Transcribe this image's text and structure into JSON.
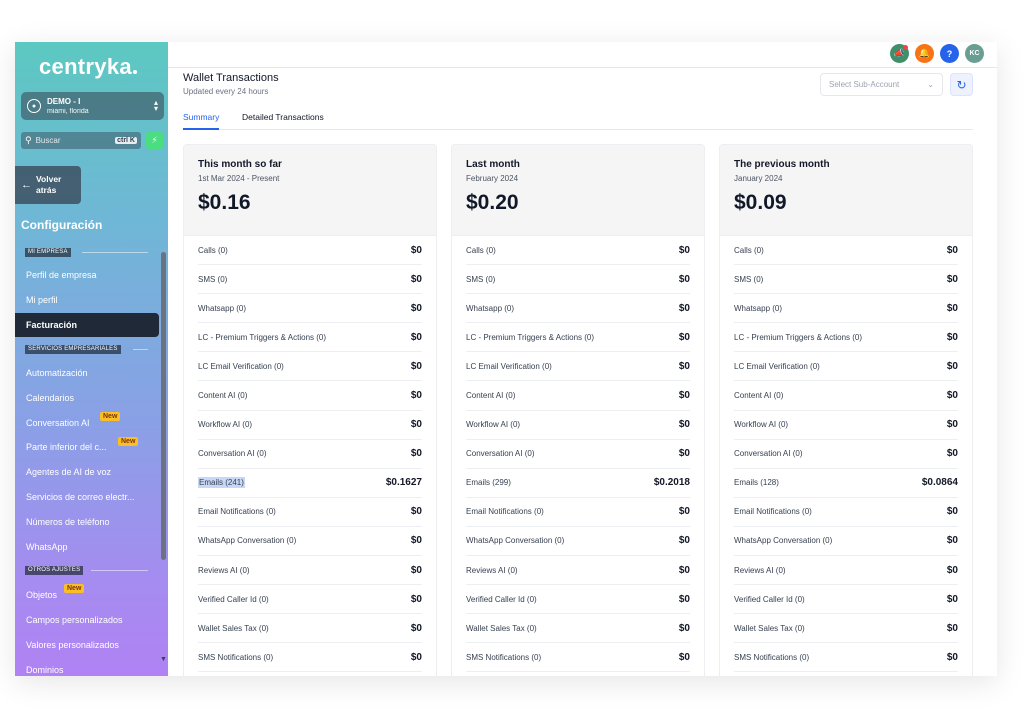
{
  "sidebar": {
    "logo": "centryka",
    "account": {
      "name": "DEMO - I",
      "location": "miami, florida"
    },
    "search": {
      "placeholder": "Buscar",
      "shortcut": "ctrl K"
    },
    "back": "Volver atrás",
    "config_title": "Configuración",
    "sections": [
      {
        "label": "MI EMPRESA",
        "items": [
          "Perfil de empresa",
          "Mi perfil",
          "Facturación"
        ]
      },
      {
        "label": "SERVICIOS EMPRESARIALES",
        "items": [
          "Automatización",
          "Calendarios",
          "Conversation AI",
          "Parte inferior del c...",
          "Agentes de AI de voz",
          "Servicios de correo electr...",
          "Números de teléfono",
          "WhatsApp"
        ]
      },
      {
        "label": "OTROS AJUSTES",
        "items": [
          "Objetos",
          "Campos personalizados",
          "Valores personalizados",
          "Dominios"
        ]
      }
    ],
    "active_item": "Facturación",
    "new_badge": "New"
  },
  "header": {
    "avatar": "KC",
    "help": "?"
  },
  "main": {
    "title": "Wallet Transactions",
    "subtitle": "Updated every 24 hours",
    "subaccount_placeholder": "Select Sub-Account",
    "tabs": [
      "Summary",
      "Detailed Transactions"
    ],
    "active_tab": "Summary"
  },
  "cards": [
    {
      "title": "This month so far",
      "range": "1st Mar 2024 - Present",
      "total": "$0.16",
      "rows": [
        {
          "label": "Calls (0)",
          "value": "$0"
        },
        {
          "label": "SMS (0)",
          "value": "$0"
        },
        {
          "label": "Whatsapp (0)",
          "value": "$0"
        },
        {
          "label": "LC - Premium Triggers & Actions (0)",
          "value": "$0"
        },
        {
          "label": "LC Email Verification (0)",
          "value": "$0"
        },
        {
          "label": "Content AI (0)",
          "value": "$0"
        },
        {
          "label": "Workflow AI (0)",
          "value": "$0"
        },
        {
          "label": "Conversation AI (0)",
          "value": "$0"
        },
        {
          "label": "Emails (241)",
          "value": "$0.1627"
        },
        {
          "label": "Email Notifications (0)",
          "value": "$0"
        },
        {
          "label": "WhatsApp Conversation (0)",
          "value": "$0"
        },
        {
          "label": "Reviews AI (0)",
          "value": "$0"
        },
        {
          "label": "Verified Caller Id (0)",
          "value": "$0"
        },
        {
          "label": "Wallet Sales Tax (0)",
          "value": "$0"
        },
        {
          "label": "SMS Notifications (0)",
          "value": "$0"
        }
      ]
    },
    {
      "title": "Last month",
      "range": "February 2024",
      "total": "$0.20",
      "rows": [
        {
          "label": "Calls (0)",
          "value": "$0"
        },
        {
          "label": "SMS (0)",
          "value": "$0"
        },
        {
          "label": "Whatsapp (0)",
          "value": "$0"
        },
        {
          "label": "LC - Premium Triggers & Actions (0)",
          "value": "$0"
        },
        {
          "label": "LC Email Verification (0)",
          "value": "$0"
        },
        {
          "label": "Content AI (0)",
          "value": "$0"
        },
        {
          "label": "Workflow AI (0)",
          "value": "$0"
        },
        {
          "label": "Conversation AI (0)",
          "value": "$0"
        },
        {
          "label": "Emails (299)",
          "value": "$0.2018"
        },
        {
          "label": "Email Notifications (0)",
          "value": "$0"
        },
        {
          "label": "WhatsApp Conversation (0)",
          "value": "$0"
        },
        {
          "label": "Reviews AI (0)",
          "value": "$0"
        },
        {
          "label": "Verified Caller Id (0)",
          "value": "$0"
        },
        {
          "label": "Wallet Sales Tax (0)",
          "value": "$0"
        },
        {
          "label": "SMS Notifications (0)",
          "value": "$0"
        }
      ]
    },
    {
      "title": "The previous month",
      "range": "January 2024",
      "total": "$0.09",
      "rows": [
        {
          "label": "Calls (0)",
          "value": "$0"
        },
        {
          "label": "SMS (0)",
          "value": "$0"
        },
        {
          "label": "Whatsapp (0)",
          "value": "$0"
        },
        {
          "label": "LC - Premium Triggers & Actions (0)",
          "value": "$0"
        },
        {
          "label": "LC Email Verification (0)",
          "value": "$0"
        },
        {
          "label": "Content AI (0)",
          "value": "$0"
        },
        {
          "label": "Workflow AI (0)",
          "value": "$0"
        },
        {
          "label": "Conversation AI (0)",
          "value": "$0"
        },
        {
          "label": "Emails (128)",
          "value": "$0.0864"
        },
        {
          "label": "Email Notifications (0)",
          "value": "$0"
        },
        {
          "label": "WhatsApp Conversation (0)",
          "value": "$0"
        },
        {
          "label": "Reviews AI (0)",
          "value": "$0"
        },
        {
          "label": "Verified Caller Id (0)",
          "value": "$0"
        },
        {
          "label": "Wallet Sales Tax (0)",
          "value": "$0"
        },
        {
          "label": "SMS Notifications (0)",
          "value": "$0"
        }
      ]
    }
  ],
  "colors": {
    "accent": "#2563eb",
    "sidebar_top": "#5cc8c1",
    "sidebar_bottom": "#b082f3",
    "badge": "#fbbf24"
  }
}
